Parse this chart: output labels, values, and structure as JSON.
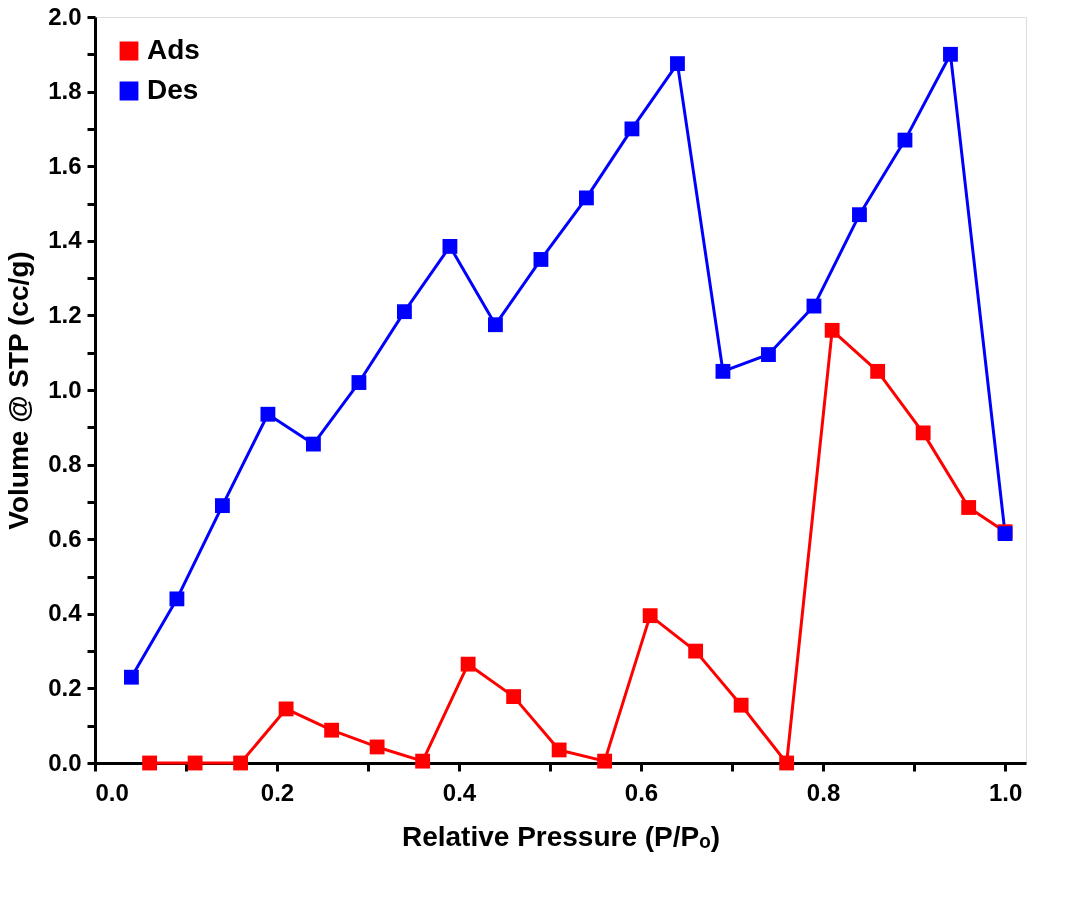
{
  "chart_data": {
    "type": "line",
    "xlabel": "Relative Pressure (P/Pₒ)",
    "ylabel": "Volume @ STP (cc/g)",
    "xlim": [
      0,
      1.023
    ],
    "ylim": [
      0,
      2.0
    ],
    "xticks": [
      {
        "value": 0,
        "label": "0.0"
      },
      {
        "value": 0.1,
        "label": null
      },
      0.2,
      {
        "value": 0.3,
        "label": null
      },
      0.4,
      {
        "value": 0.5,
        "label": null
      },
      0.6,
      {
        "value": 0.7,
        "label": null
      },
      0.8,
      {
        "value": 0.9,
        "label": null
      },
      {
        "value": 1,
        "label": "1.0"
      }
    ],
    "yticks": [
      {
        "value": 0,
        "label": "0.0"
      },
      {
        "value": 0.1,
        "label": null
      },
      0.2,
      {
        "value": 0.3,
        "label": null
      },
      0.4,
      {
        "value": 0.5,
        "label": null
      },
      0.6,
      {
        "value": 0.7,
        "label": null
      },
      0.8,
      {
        "value": 0.9,
        "label": null
      },
      {
        "value": 1,
        "label": "1.0"
      },
      {
        "value": 1.1,
        "label": null
      },
      1.2,
      {
        "value": 1.3,
        "label": null
      },
      1.4,
      {
        "value": 1.5,
        "label": null
      },
      1.6,
      {
        "value": 1.7,
        "label": null
      },
      1.8,
      {
        "value": 1.9,
        "label": null
      },
      {
        "value": 2,
        "label": "2.0"
      }
    ],
    "grid": false,
    "legend": "top left",
    "marker": "square",
    "line_style": "solid",
    "series": [
      {
        "name": "Ads",
        "color": "#ff0000",
        "x": [
          0.06,
          0.11,
          0.16,
          0.21,
          0.26,
          0.31,
          0.36,
          0.41,
          0.46,
          0.51,
          0.56,
          0.61,
          0.66,
          0.71,
          0.76,
          0.81,
          0.86,
          0.91,
          0.96,
          1.0
        ],
        "values": [
          0.0,
          0.0,
          0.0,
          0.145,
          0.088,
          0.043,
          0.005,
          0.265,
          0.178,
          0.035,
          0.005,
          0.395,
          0.3,
          0.155,
          0.0,
          1.16,
          1.05,
          0.885,
          0.685,
          0.62
        ]
      },
      {
        "name": "Des",
        "color": "#0000ff",
        "x": [
          0.04,
          0.09,
          0.14,
          0.19,
          0.24,
          0.29,
          0.34,
          0.39,
          0.44,
          0.49,
          0.54,
          0.59,
          0.64,
          0.69,
          0.74,
          0.79,
          0.84,
          0.89,
          0.94,
          1.0
        ],
        "values": [
          0.23,
          0.44,
          0.69,
          0.935,
          0.855,
          1.02,
          1.21,
          1.385,
          1.175,
          1.35,
          1.515,
          1.7,
          1.875,
          1.05,
          1.095,
          1.225,
          1.47,
          1.67,
          1.9,
          0.615
        ]
      }
    ]
  }
}
